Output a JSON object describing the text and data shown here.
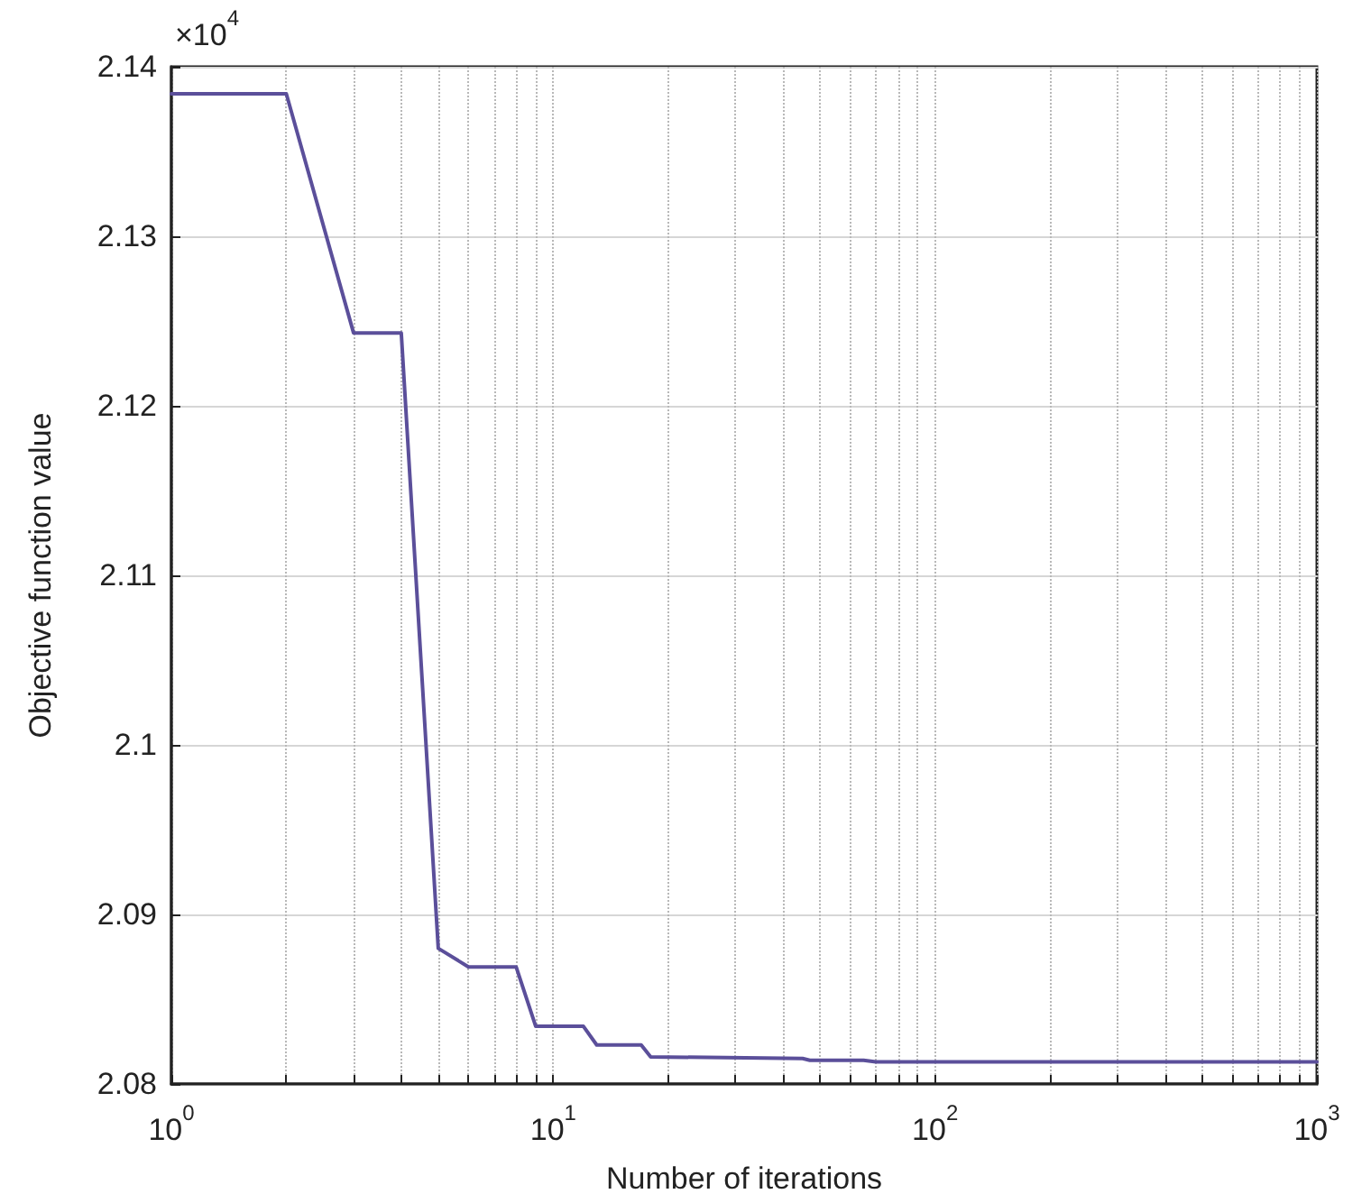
{
  "chart_data": {
    "type": "line",
    "xlabel": "Number of iterations",
    "ylabel": "Objective function value",
    "annotations": [
      "×10$^{4}$"
    ],
    "series": [
      {
        "color": "#5b4f9a",
        "x": [
          1,
          2,
          3,
          4,
          5,
          6,
          8,
          9,
          12,
          13,
          17,
          18,
          45,
          47,
          65,
          70,
          1000
        ],
        "values": [
          2.1384,
          2.1384,
          2.1243,
          2.1243,
          2.088,
          2.0869,
          2.0869,
          2.0834,
          2.0834,
          2.0823,
          2.0823,
          2.0816,
          2.0815,
          2.0814,
          2.0814,
          2.0813,
          2.0813
        ]
      }
    ],
    "log": "x",
    "xlim": [
      1,
      1000
    ],
    "ylim": [
      2.08,
      2.14
    ],
    "xticks": [
      {
        "value": 1,
        "label": "10$^{0}$"
      },
      {
        "value": 2,
        "label": null
      },
      {
        "value": 3,
        "label": null
      },
      {
        "value": 4,
        "label": null
      },
      {
        "value": 5,
        "label": null
      },
      {
        "value": 6,
        "label": null
      },
      {
        "value": 7,
        "label": null
      },
      {
        "value": 8,
        "label": null
      },
      {
        "value": 9,
        "label": null
      },
      {
        "value": 10,
        "label": "10$^{1}$"
      },
      {
        "value": 20,
        "label": null
      },
      {
        "value": 30,
        "label": null
      },
      {
        "value": 40,
        "label": null
      },
      {
        "value": 50,
        "label": null
      },
      {
        "value": 60,
        "label": null
      },
      {
        "value": 70,
        "label": null
      },
      {
        "value": 80,
        "label": null
      },
      {
        "value": 90,
        "label": null
      },
      {
        "value": 100,
        "label": "10$^{2}$"
      },
      {
        "value": 200,
        "label": null
      },
      {
        "value": 300,
        "label": null
      },
      {
        "value": 400,
        "label": null
      },
      {
        "value": 500,
        "label": null
      },
      {
        "value": 600,
        "label": null
      },
      {
        "value": 700,
        "label": null
      },
      {
        "value": 800,
        "label": null
      },
      {
        "value": 900,
        "label": null
      },
      {
        "value": 1000,
        "label": "10$^{3}$"
      }
    ],
    "yticks": [
      2.08,
      2.09,
      2.1,
      2.11,
      2.12,
      2.13,
      2.14
    ],
    "grid": true,
    "marker": "none",
    "line_style": "solid"
  }
}
